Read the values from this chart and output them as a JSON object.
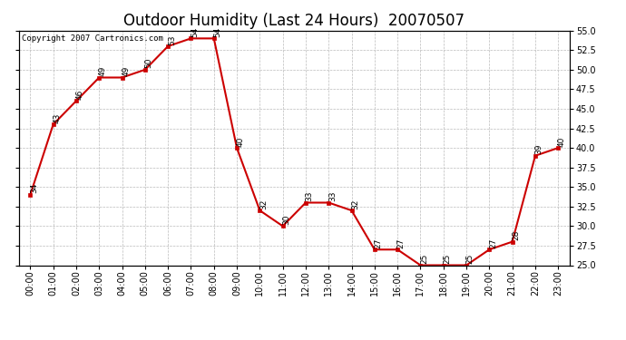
{
  "title": "Outdoor Humidity (Last 24 Hours)  20070507",
  "copyright": "Copyright 2007 Cartronics.com",
  "hours": [
    0,
    1,
    2,
    3,
    4,
    5,
    6,
    7,
    8,
    9,
    10,
    11,
    12,
    13,
    14,
    15,
    16,
    17,
    18,
    19,
    20,
    21,
    22,
    23
  ],
  "values": [
    34,
    43,
    46,
    49,
    49,
    50,
    53,
    54,
    54,
    40,
    32,
    30,
    33,
    33,
    32,
    27,
    27,
    25,
    25,
    25,
    27,
    28,
    39,
    40
  ],
  "xlabels": [
    "00:00",
    "01:00",
    "02:00",
    "03:00",
    "04:00",
    "05:00",
    "06:00",
    "07:00",
    "08:00",
    "09:00",
    "10:00",
    "11:00",
    "12:00",
    "13:00",
    "14:00",
    "15:00",
    "16:00",
    "17:00",
    "18:00",
    "19:00",
    "20:00",
    "21:00",
    "22:00",
    "23:00"
  ],
  "ylim": [
    25.0,
    55.0
  ],
  "yticks": [
    25.0,
    27.5,
    30.0,
    32.5,
    35.0,
    37.5,
    40.0,
    42.5,
    45.0,
    47.5,
    50.0,
    52.5,
    55.0
  ],
  "line_color": "#cc0000",
  "marker_color": "#cc0000",
  "bg_color": "#ffffff",
  "grid_color": "#bbbbbb",
  "title_fontsize": 12,
  "annot_fontsize": 6.5,
  "tick_fontsize": 7,
  "copyright_fontsize": 6.5
}
